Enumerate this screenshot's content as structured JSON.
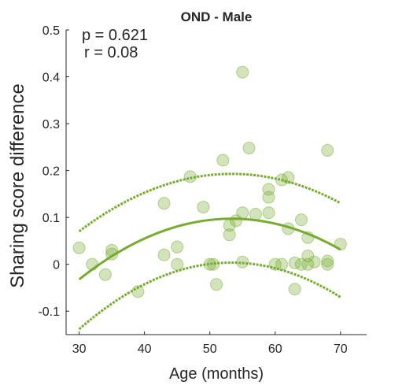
{
  "chart_data": {
    "type": "scatter",
    "title": "OND - Male",
    "xlabel": "Age (months)",
    "ylabel": "Sharing score difference",
    "xlim": [
      28,
      74
    ],
    "ylim": [
      -0.15,
      0.5
    ],
    "xticks": [
      30,
      40,
      50,
      60,
      70
    ],
    "yticks": [
      -0.1,
      0,
      0.1,
      0.2,
      0.3,
      0.4,
      0.5
    ],
    "xtick_labels": [
      "30",
      "40",
      "50",
      "60",
      "70"
    ],
    "ytick_labels": [
      "-0.1",
      "0",
      "0.1",
      "0.2",
      "0.3",
      "0.4",
      "0.5"
    ],
    "annotations": [
      "p = 0.621",
      "r = 0.08"
    ],
    "colors": {
      "marker": "#77ac30",
      "fit": "#77ac30"
    },
    "points": [
      [
        30,
        0.035
      ],
      [
        32,
        0.0
      ],
      [
        34,
        -0.022
      ],
      [
        35,
        0.03
      ],
      [
        35,
        0.022
      ],
      [
        39,
        -0.058
      ],
      [
        43,
        0.13
      ],
      [
        43,
        0.02
      ],
      [
        45,
        0.037
      ],
      [
        45,
        0.0
      ],
      [
        47,
        0.187
      ],
      [
        49,
        0.122
      ],
      [
        50,
        0.0
      ],
      [
        50.5,
        0.0
      ],
      [
        51,
        -0.043
      ],
      [
        52,
        0.222
      ],
      [
        53,
        0.083
      ],
      [
        53,
        0.063
      ],
      [
        54,
        0.093
      ],
      [
        55,
        0.41
      ],
      [
        55,
        0.11
      ],
      [
        55,
        0.005
      ],
      [
        56,
        0.248
      ],
      [
        57,
        0.107
      ],
      [
        59,
        0.16
      ],
      [
        59,
        0.143
      ],
      [
        59,
        0.11
      ],
      [
        60,
        0.0
      ],
      [
        61,
        0.18
      ],
      [
        61,
        0.0
      ],
      [
        62,
        0.185
      ],
      [
        62,
        0.076
      ],
      [
        63,
        0.003
      ],
      [
        63,
        -0.053
      ],
      [
        64,
        0.095
      ],
      [
        64,
        0.0
      ],
      [
        65,
        0.057
      ],
      [
        65,
        0.018
      ],
      [
        65,
        0.0
      ],
      [
        66,
        0.005
      ],
      [
        68,
        0.243
      ],
      [
        68,
        0.007
      ],
      [
        68,
        0.0
      ],
      [
        70,
        0.043
      ]
    ],
    "fit": {
      "x": [
        30,
        35,
        40,
        45,
        50,
        55,
        60,
        65,
        70
      ],
      "y": [
        -0.035,
        0.018,
        0.058,
        0.083,
        0.095,
        0.095,
        0.083,
        0.063,
        0.035
      ]
    },
    "ci_upper": {
      "x": [
        30,
        35,
        40,
        45,
        50,
        55,
        60,
        65,
        70
      ],
      "y": [
        0.07,
        0.115,
        0.155,
        0.18,
        0.19,
        0.191,
        0.182,
        0.16,
        0.133
      ]
    },
    "ci_lower": {
      "x": [
        30,
        35,
        40,
        45,
        50,
        55,
        60,
        65,
        70
      ],
      "y": [
        -0.14,
        -0.085,
        -0.04,
        -0.01,
        0.0,
        0.0,
        -0.01,
        -0.035,
        -0.067
      ]
    }
  }
}
